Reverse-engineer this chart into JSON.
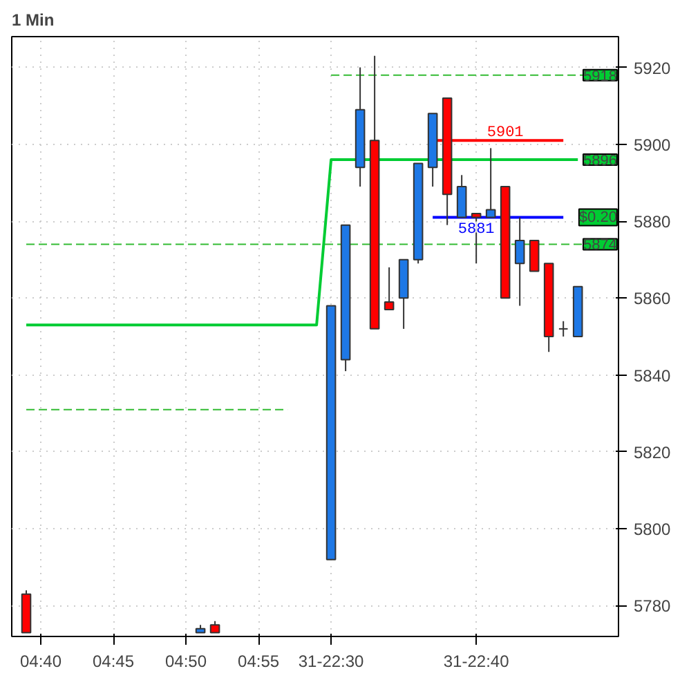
{
  "chart_data": {
    "type": "candlestick",
    "title": "1 Min",
    "categories": [
      null,
      "04:40",
      null,
      null,
      null,
      null,
      "04:45",
      null,
      null,
      null,
      null,
      "04:50",
      null,
      null,
      null,
      null,
      "04:55",
      null,
      null,
      null,
      null,
      "31-22:30",
      null,
      null,
      null,
      null,
      null,
      null,
      null,
      null,
      null,
      "31-22:40",
      null,
      null,
      null,
      null,
      null,
      null,
      null,
      null,
      null
    ],
    "ohlc": [
      [
        5783,
        5784,
        5773,
        5773
      ],
      null,
      null,
      null,
      null,
      null,
      null,
      null,
      null,
      null,
      null,
      null,
      [
        5773,
        5775,
        5773,
        5774
      ],
      [
        5775,
        5776,
        5773,
        5773
      ],
      null,
      null,
      null,
      null,
      null,
      null,
      null,
      [
        5792,
        5858,
        5792,
        5858
      ],
      [
        5844,
        5879,
        5841,
        5879
      ],
      [
        5894,
        5920,
        5889,
        5909
      ],
      [
        5901,
        5923,
        5852,
        5852
      ],
      [
        5859,
        5868,
        5857,
        5857
      ],
      [
        5860,
        5870,
        5852,
        5870
      ],
      [
        5870,
        5895,
        5869,
        5895
      ],
      [
        5894,
        5908,
        5889,
        5908
      ],
      [
        5912,
        5912,
        5879,
        5887
      ],
      [
        5881,
        5892,
        5881,
        5889
      ],
      [
        5882,
        5882,
        5869,
        5881
      ],
      [
        5881,
        5899,
        5881,
        5883
      ],
      [
        5889,
        5889,
        5860,
        5860
      ],
      [
        5869,
        5881,
        5858,
        5875
      ],
      [
        5875,
        5875,
        5867,
        5867
      ],
      [
        5869,
        5869,
        5846,
        5850
      ],
      [
        5852,
        5854,
        5850,
        5852
      ],
      [
        5850,
        5863,
        5850,
        5863
      ],
      null,
      null
    ],
    "colors": [
      "#ff0000",
      null,
      null,
      null,
      null,
      null,
      null,
      null,
      null,
      null,
      null,
      null,
      "#1e78e6",
      "#ff0000",
      null,
      null,
      null,
      null,
      null,
      null,
      null,
      "#1e78e6",
      "#1e78e6",
      "#1e78e6",
      "#ff0000",
      "#ff0000",
      "#1e78e6",
      "#1e78e6",
      "#1e78e6",
      "#ff0000",
      "#1e78e6",
      "#ff0000",
      "#1e78e6",
      "#ff0000",
      "#1e78e6",
      "#ff0000",
      "#ff0000",
      "#333333",
      "#1e78e6",
      null,
      null
    ],
    "series": [
      {
        "type": "line",
        "color": "#00cc33",
        "line_style": "solid",
        "values": [
          5853,
          5853,
          5853,
          5853,
          5853,
          5853,
          5853,
          5853,
          5853,
          5853,
          5853,
          5853,
          5853,
          5853,
          5853,
          5853,
          5853,
          5853,
          5853,
          5853,
          5853,
          5896,
          5896,
          5896,
          5896,
          5896,
          5896,
          5896,
          5896,
          5896,
          5896,
          5896,
          5896,
          5896,
          5896,
          5896,
          5896,
          5896,
          5896,
          null,
          null
        ]
      },
      {
        "type": "line",
        "color": "#33bb33",
        "line_style": "dashed",
        "values": [
          null,
          null,
          null,
          null,
          null,
          null,
          null,
          null,
          null,
          null,
          null,
          null,
          null,
          null,
          null,
          null,
          null,
          null,
          null,
          null,
          null,
          5918,
          5918,
          5918,
          5918,
          5918,
          5918,
          5918,
          5918,
          5918,
          5918,
          5918,
          5918,
          5918,
          5918,
          5918,
          5918,
          5918,
          5918,
          5918,
          5918
        ]
      },
      {
        "type": "line",
        "color": "#33bb33",
        "line_style": "dashed",
        "values": [
          5874,
          5874,
          5874,
          5874,
          5874,
          5874,
          5874,
          5874,
          5874,
          5874,
          5874,
          5874,
          5874,
          5874,
          5874,
          5874,
          5874,
          5874,
          5874,
          5874,
          5874,
          5874,
          5874,
          5874,
          5874,
          5874,
          5874,
          5874,
          5874,
          5874,
          5874,
          5874,
          5874,
          5874,
          5874,
          5874,
          5874,
          5874,
          5874,
          5874,
          5874
        ]
      },
      {
        "type": "line",
        "color": "#33bb33",
        "line_style": "dashed",
        "values": [
          5831,
          5831,
          5831,
          5831,
          5831,
          5831,
          5831,
          5831,
          5831,
          5831,
          5831,
          5831,
          5831,
          5831,
          5831,
          5831,
          5831,
          5831,
          5831,
          null,
          null,
          null,
          null,
          null,
          null,
          null,
          null,
          null,
          null,
          null,
          null,
          null,
          null,
          null,
          null,
          null,
          null,
          null,
          null,
          null,
          null
        ]
      },
      {
        "type": "line",
        "color": "#ff0000",
        "line_style": "solid",
        "values": [
          null,
          null,
          null,
          null,
          null,
          null,
          null,
          null,
          null,
          null,
          null,
          null,
          null,
          null,
          null,
          null,
          null,
          null,
          null,
          null,
          null,
          null,
          null,
          null,
          null,
          null,
          null,
          null,
          5901,
          5901,
          5901,
          5901,
          5901,
          5901,
          5901,
          5901,
          5901,
          5901,
          null,
          null,
          null
        ],
        "value_labels": [
          null,
          null,
          null,
          null,
          null,
          null,
          null,
          null,
          null,
          null,
          null,
          null,
          null,
          null,
          null,
          null,
          null,
          null,
          null,
          null,
          null,
          null,
          null,
          null,
          null,
          null,
          null,
          null,
          null,
          null,
          null,
          null,
          null,
          "5901",
          null,
          null,
          null,
          null,
          null,
          null,
          null
        ]
      },
      {
        "type": "line",
        "color": "#0000ff",
        "line_style": "solid",
        "values": [
          null,
          null,
          null,
          null,
          null,
          null,
          null,
          null,
          null,
          null,
          null,
          null,
          null,
          null,
          null,
          null,
          null,
          null,
          null,
          null,
          null,
          null,
          null,
          null,
          null,
          null,
          null,
          null,
          5881,
          5881,
          5881,
          5881,
          5881,
          5881,
          5881,
          5881,
          5881,
          5881,
          null,
          null,
          null
        ],
        "value_labels": [
          null,
          null,
          null,
          null,
          null,
          null,
          null,
          null,
          null,
          null,
          null,
          null,
          null,
          null,
          null,
          null,
          null,
          null,
          null,
          null,
          null,
          null,
          null,
          null,
          null,
          null,
          null,
          null,
          null,
          null,
          null,
          "5881",
          null,
          null,
          null,
          null,
          null,
          null,
          null,
          null,
          null
        ]
      }
    ],
    "annotations": [
      {
        "text": "$0.20",
        "y": 5881
      },
      {
        "text": "5918",
        "y": 5918
      },
      {
        "text": "5896",
        "y": 5896
      },
      {
        "text": "5874",
        "y": 5874
      }
    ],
    "ylim": [
      5772,
      5928
    ],
    "yticks": [
      5780,
      5800,
      5820,
      5840,
      5860,
      5880,
      5900,
      5920
    ],
    "grid": true
  }
}
